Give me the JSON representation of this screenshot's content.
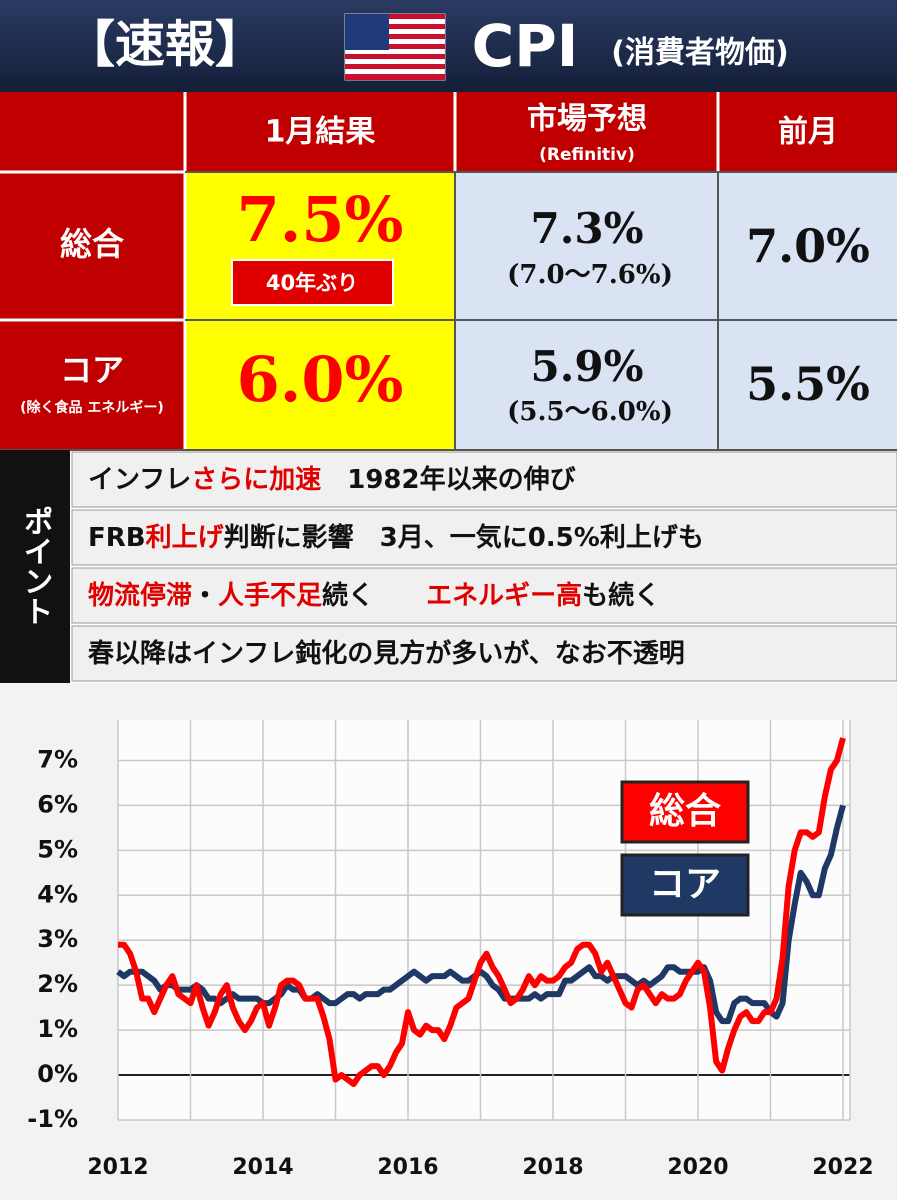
{
  "header": {
    "tag": "【速報】",
    "title": "CPI",
    "subtitle": "(消費者物価)"
  },
  "table": {
    "columns": [
      {
        "title": "1月結果"
      },
      {
        "title": "市場予想",
        "sub": "(Refinitiv)"
      },
      {
        "title": "前月"
      }
    ],
    "rows": [
      {
        "label": "総合",
        "result": "7.5%",
        "note": "40年ぶり",
        "forecast": "7.3%",
        "range": "(7.0～7.6%)",
        "prev": "7.0%"
      },
      {
        "label": "コア",
        "sublabel": "(除く食品 エネルギー)",
        "result": "6.0%",
        "forecast": "5.9%",
        "range": "(5.5～6.0%)",
        "prev": "5.5%"
      }
    ]
  },
  "points": {
    "title": "ポイント",
    "items": [
      [
        {
          "text": "インフレ",
          "color": "#111111"
        },
        {
          "text": "さらに加速",
          "color": "#e00000"
        },
        {
          "text": "　1982年以来の伸び",
          "color": "#111111"
        }
      ],
      [
        {
          "text": "FRB",
          "color": "#111111"
        },
        {
          "text": "利上げ",
          "color": "#e00000"
        },
        {
          "text": "判断に影響　3月、一気に0.5%利上げも",
          "color": "#111111"
        }
      ],
      [
        {
          "text": "物流停滞",
          "color": "#e00000"
        },
        {
          "text": "・",
          "color": "#111111"
        },
        {
          "text": "人手不足",
          "color": "#e00000"
        },
        {
          "text": "続く　　",
          "color": "#111111"
        },
        {
          "text": "エネルギー高",
          "color": "#e00000"
        },
        {
          "text": "も続く",
          "color": "#111111"
        }
      ],
      [
        {
          "text": "春以降はインフレ鈍化の見方が多いが、なお不透明",
          "color": "#111111"
        }
      ]
    ]
  },
  "chart_data": {
    "type": "line",
    "categories": [
      "2012",
      null,
      null,
      null,
      null,
      null,
      null,
      null,
      null,
      null,
      null,
      null,
      null,
      null,
      null,
      null,
      null,
      null,
      null,
      null,
      null,
      null,
      null,
      null,
      "2014",
      null,
      null,
      null,
      null,
      null,
      null,
      null,
      null,
      null,
      null,
      null,
      null,
      null,
      null,
      null,
      null,
      null,
      null,
      null,
      null,
      null,
      null,
      null,
      "2016",
      null,
      null,
      null,
      null,
      null,
      null,
      null,
      null,
      null,
      null,
      null,
      null,
      null,
      null,
      null,
      null,
      null,
      null,
      null,
      null,
      null,
      null,
      null,
      "2018",
      null,
      null,
      null,
      null,
      null,
      null,
      null,
      null,
      null,
      null,
      null,
      null,
      null,
      null,
      null,
      null,
      null,
      null,
      null,
      null,
      null,
      null,
      null,
      "2020",
      null,
      null,
      null,
      null,
      null,
      null,
      null,
      null,
      null,
      null,
      null,
      null,
      null,
      null,
      null,
      null,
      null,
      null,
      null,
      null,
      null,
      null,
      null,
      "2022"
    ],
    "series": [
      {
        "name": "総合",
        "color": "#ff0000",
        "values": [
          2.9,
          2.9,
          2.7,
          2.3,
          1.7,
          1.7,
          1.4,
          1.7,
          2.0,
          2.2,
          1.8,
          1.7,
          1.6,
          2.0,
          1.5,
          1.1,
          1.4,
          1.8,
          2.0,
          1.5,
          1.2,
          1.0,
          1.2,
          1.5,
          1.6,
          1.1,
          1.5,
          2.0,
          2.1,
          2.1,
          2.0,
          1.7,
          1.7,
          1.7,
          1.3,
          0.8,
          -0.1,
          0.0,
          -0.1,
          -0.2,
          0.0,
          0.1,
          0.2,
          0.2,
          0.0,
          0.2,
          0.5,
          0.7,
          1.4,
          1.0,
          0.9,
          1.1,
          1.0,
          1.0,
          0.8,
          1.1,
          1.5,
          1.6,
          1.7,
          2.1,
          2.5,
          2.7,
          2.4,
          2.2,
          1.9,
          1.6,
          1.7,
          1.9,
          2.2,
          2.0,
          2.2,
          2.1,
          2.1,
          2.2,
          2.4,
          2.5,
          2.8,
          2.9,
          2.9,
          2.7,
          2.3,
          2.5,
          2.2,
          1.9,
          1.6,
          1.5,
          1.9,
          2.0,
          1.8,
          1.6,
          1.8,
          1.7,
          1.7,
          1.8,
          2.1,
          2.3,
          2.5,
          2.3,
          1.5,
          0.3,
          0.1,
          0.6,
          1.0,
          1.3,
          1.4,
          1.2,
          1.2,
          1.4,
          1.4,
          1.7,
          2.6,
          4.2,
          5.0,
          5.4,
          5.4,
          5.3,
          5.4,
          6.2,
          6.8,
          7.0,
          7.5
        ]
      },
      {
        "name": "コア",
        "color": "#1f3864",
        "values": [
          2.3,
          2.2,
          2.3,
          2.3,
          2.3,
          2.2,
          2.1,
          1.9,
          2.0,
          2.0,
          1.9,
          1.9,
          1.9,
          2.0,
          1.9,
          1.7,
          1.7,
          1.6,
          1.7,
          1.8,
          1.7,
          1.7,
          1.7,
          1.7,
          1.6,
          1.6,
          1.7,
          1.8,
          2.0,
          1.9,
          1.9,
          1.7,
          1.7,
          1.8,
          1.7,
          1.6,
          1.6,
          1.7,
          1.8,
          1.8,
          1.7,
          1.8,
          1.8,
          1.8,
          1.9,
          1.9,
          2.0,
          2.1,
          2.2,
          2.3,
          2.2,
          2.1,
          2.2,
          2.2,
          2.2,
          2.3,
          2.2,
          2.1,
          2.1,
          2.2,
          2.3,
          2.2,
          2.0,
          1.9,
          1.7,
          1.7,
          1.7,
          1.7,
          1.7,
          1.8,
          1.7,
          1.8,
          1.8,
          1.8,
          2.1,
          2.1,
          2.2,
          2.3,
          2.4,
          2.2,
          2.2,
          2.1,
          2.2,
          2.2,
          2.2,
          2.1,
          2.0,
          2.1,
          2.0,
          2.1,
          2.2,
          2.4,
          2.4,
          2.3,
          2.3,
          2.3,
          2.3,
          2.4,
          2.1,
          1.4,
          1.2,
          1.2,
          1.6,
          1.7,
          1.7,
          1.6,
          1.6,
          1.6,
          1.4,
          1.3,
          1.6,
          3.0,
          3.8,
          4.5,
          4.3,
          4.0,
          4.0,
          4.6,
          4.9,
          5.5,
          6.0
        ]
      }
    ],
    "ylim": [
      -1,
      7.9
    ],
    "yticks": [
      {
        "value": -1,
        "label": "-1%"
      },
      {
        "value": 0,
        "label": "0%"
      },
      {
        "value": 1,
        "label": "1%"
      },
      {
        "value": 2,
        "label": "2%"
      },
      {
        "value": 3,
        "label": "3%"
      },
      {
        "value": 4,
        "label": "4%"
      },
      {
        "value": 5,
        "label": "5%"
      },
      {
        "value": 6,
        "label": "6%"
      },
      {
        "value": 7,
        "label": "7%"
      }
    ],
    "grid": true
  }
}
